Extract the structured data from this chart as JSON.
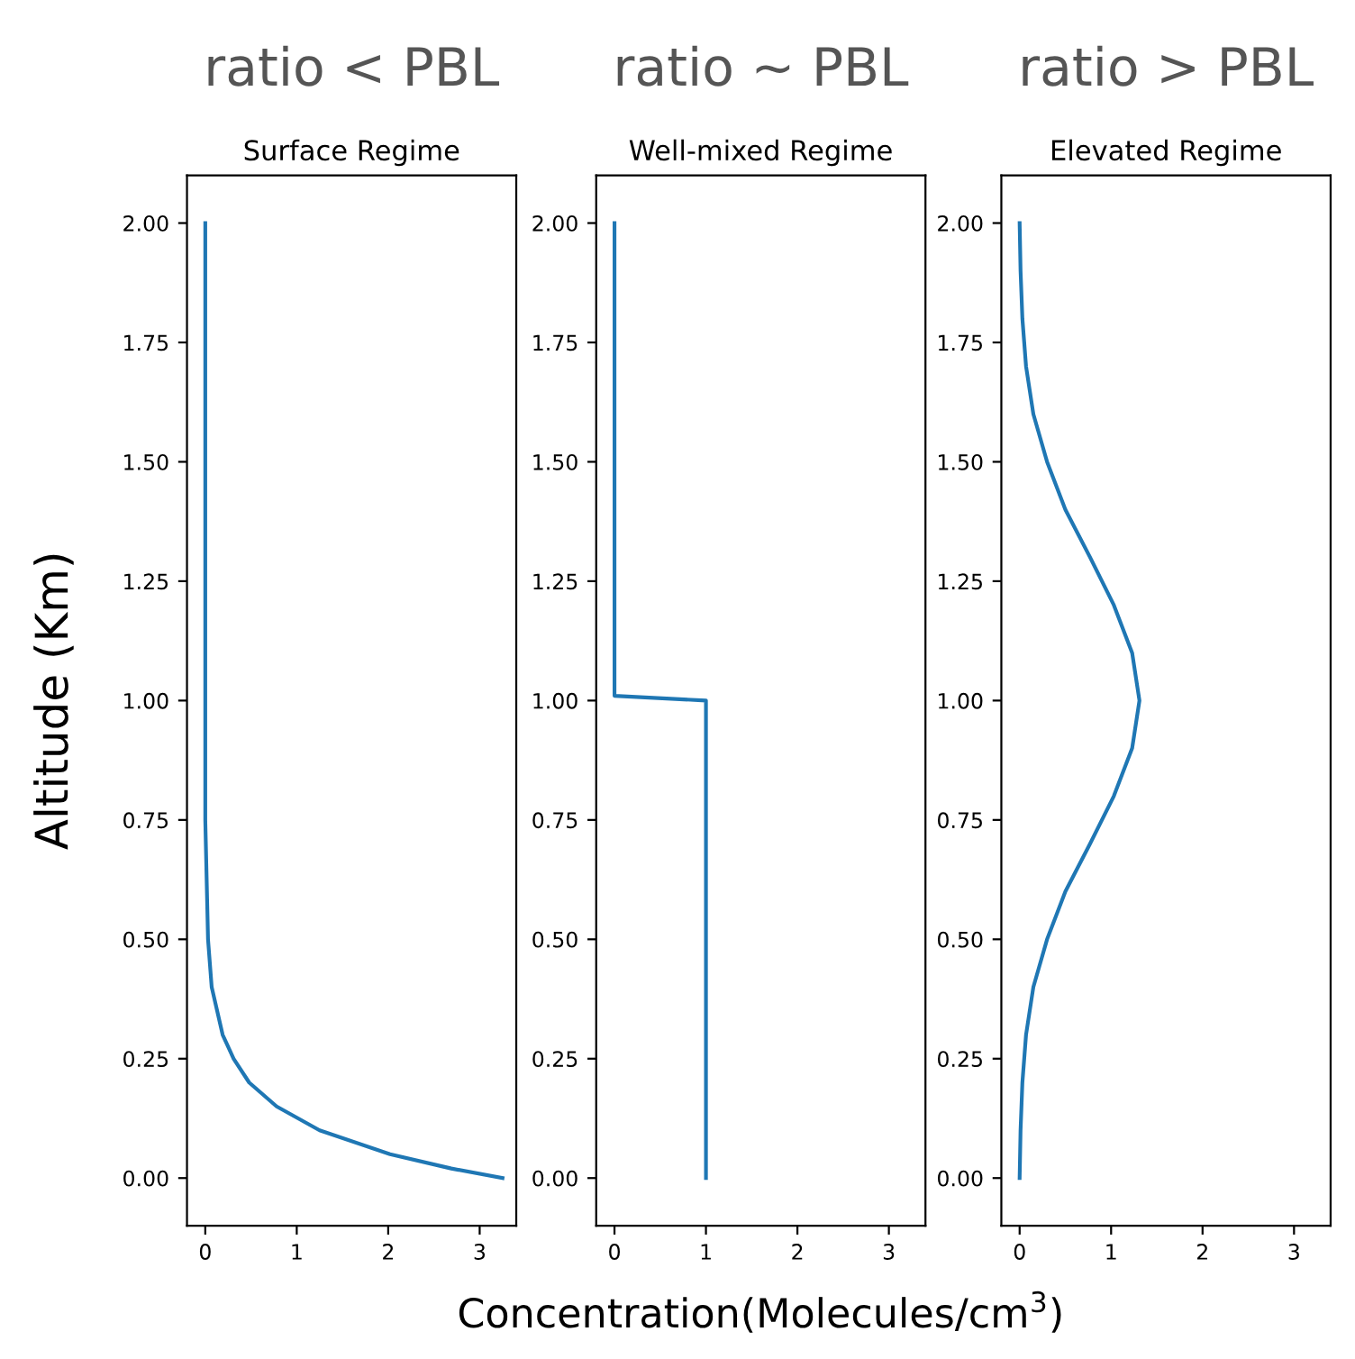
{
  "chart_data": [
    {
      "type": "line",
      "subtitle": "ratio < PBL",
      "title": "Surface Regime",
      "ylabel": "Altitude (Km)",
      "xlim": [
        -0.2,
        3.4
      ],
      "xticks": [
        0,
        1,
        2,
        3
      ],
      "ylim": [
        -0.1,
        2.1
      ],
      "yticks": [
        {
          "value": 0,
          "label": "0.00"
        },
        {
          "value": 0.25,
          "label": "0.25"
        },
        {
          "value": 0.5,
          "label": "0.50"
        },
        {
          "value": 0.75,
          "label": "0.75"
        },
        {
          "value": 1,
          "label": "1.00"
        },
        {
          "value": 1.25,
          "label": "1.25"
        },
        {
          "value": 1.5,
          "label": "1.50"
        },
        {
          "value": 1.75,
          "label": "1.75"
        },
        {
          "value": 2,
          "label": "2.00"
        }
      ],
      "grid": false,
      "series": [
        {
          "color": "#1f77b4",
          "x": [
            3.25,
            2.69,
            2.02,
            1.25,
            0.78,
            0.48,
            0.31,
            0.19,
            0.07,
            0.03,
            0.0,
            0.0,
            0.0,
            0.0
          ],
          "values": [
            0,
            0.02,
            0.05,
            0.1,
            0.15,
            0.2,
            0.25,
            0.3,
            0.4,
            0.5,
            0.75,
            1.0,
            1.5,
            2.0
          ]
        }
      ]
    },
    {
      "type": "line",
      "subtitle": "ratio ~ PBL",
      "title": "Well-mixed Regime",
      "xlabel": "Concentration(Molecules/cm$^{3}$)",
      "xlim": [
        -0.2,
        3.4
      ],
      "xticks": [
        0,
        1,
        2,
        3
      ],
      "ylim": [
        -0.1,
        2.1
      ],
      "yticks": [
        {
          "value": 0,
          "label": "0.00"
        },
        {
          "value": 0.25,
          "label": "0.25"
        },
        {
          "value": 0.5,
          "label": "0.50"
        },
        {
          "value": 0.75,
          "label": "0.75"
        },
        {
          "value": 1,
          "label": "1.00"
        },
        {
          "value": 1.25,
          "label": "1.25"
        },
        {
          "value": 1.5,
          "label": "1.50"
        },
        {
          "value": 1.75,
          "label": "1.75"
        },
        {
          "value": 2,
          "label": "2.00"
        }
      ],
      "grid": false,
      "series": [
        {
          "color": "#1f77b4",
          "x": [
            1,
            1,
            0,
            0
          ],
          "values": [
            0,
            1.0,
            1.01,
            2.0
          ]
        }
      ]
    },
    {
      "type": "line",
      "subtitle": "ratio > PBL",
      "title": "Elevated Regime",
      "xlim": [
        -0.2,
        3.4
      ],
      "xticks": [
        0,
        1,
        2,
        3
      ],
      "ylim": [
        -0.1,
        2.1
      ],
      "yticks": [
        {
          "value": 0,
          "label": "0.00"
        },
        {
          "value": 0.25,
          "label": "0.25"
        },
        {
          "value": 0.5,
          "label": "0.50"
        },
        {
          "value": 0.75,
          "label": "0.75"
        },
        {
          "value": 1,
          "label": "1.00"
        },
        {
          "value": 1.25,
          "label": "1.25"
        },
        {
          "value": 1.5,
          "label": "1.50"
        },
        {
          "value": 1.75,
          "label": "1.75"
        },
        {
          "value": 2,
          "label": "2.00"
        }
      ],
      "grid": false,
      "series": [
        {
          "color": "#1f77b4",
          "x": [
            0.0,
            0.01,
            0.03,
            0.07,
            0.15,
            0.3,
            0.5,
            0.77,
            1.03,
            1.23,
            1.31,
            1.23,
            1.03,
            0.77,
            0.5,
            0.3,
            0.15,
            0.07,
            0.03,
            0.01,
            0.0
          ],
          "values": [
            0,
            0.1,
            0.2,
            0.3,
            0.4,
            0.5,
            0.6,
            0.7,
            0.8,
            0.9,
            1.0,
            1.1,
            1.2,
            1.3,
            1.4,
            1.5,
            1.6,
            1.7,
            1.8,
            1.9,
            2.0
          ]
        }
      ]
    }
  ]
}
